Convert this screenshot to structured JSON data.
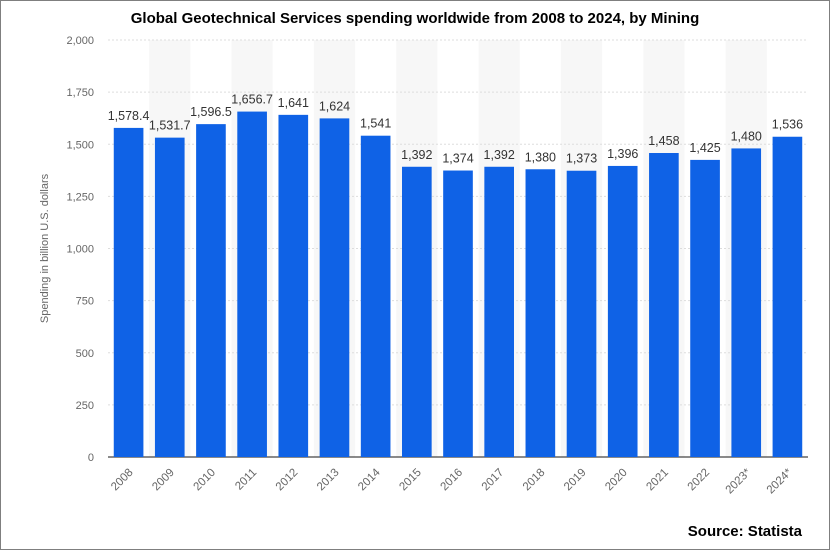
{
  "chart_data": {
    "type": "bar",
    "title": "Global Geotechnical Services spending worldwide from 2008 to 2024, by Mining",
    "ylabel": "Spending in billion U.S. dollars",
    "xlabel": "",
    "source": "Source: Statista",
    "ylim": [
      0,
      2000
    ],
    "yticks": [
      0,
      250,
      500,
      750,
      1000,
      1250,
      1500,
      1750,
      2000
    ],
    "ytick_labels": [
      "0",
      "250",
      "500",
      "750",
      "1,000",
      "1,250",
      "1,500",
      "1,750",
      "2,000"
    ],
    "grid": true,
    "bar_color": "#0f62e6",
    "categories": [
      "2008",
      "2009",
      "2010",
      "2011",
      "2012",
      "2013",
      "2014",
      "2015",
      "2016",
      "2017",
      "2018",
      "2019",
      "2020",
      "2021",
      "2022",
      "2023*",
      "2024*"
    ],
    "values": [
      1578.4,
      1531.7,
      1596.5,
      1656.7,
      1641,
      1624,
      1541,
      1392,
      1374,
      1392,
      1380,
      1373,
      1396,
      1458,
      1425,
      1480,
      1536
    ],
    "value_labels": [
      "1,578.4",
      "1,531.7",
      "1,596.5",
      "1,656.7",
      "1,641",
      "1,624",
      "1,541",
      "1,392",
      "1,374",
      "1,392",
      "1,380",
      "1,373",
      "1,396",
      "1,458",
      "1,425",
      "1,480",
      "1,536"
    ]
  }
}
